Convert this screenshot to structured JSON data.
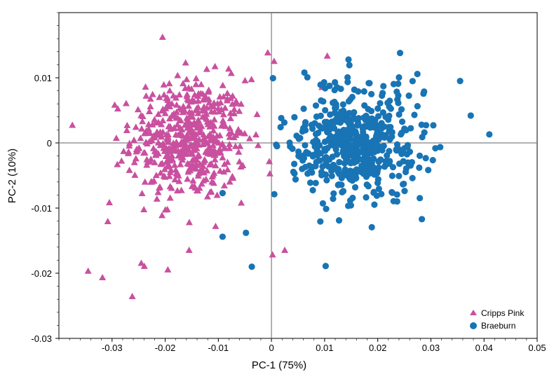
{
  "chart_data": {
    "type": "scatter",
    "xlabel": "PC-1 (75%)",
    "ylabel": "PC-2 (10%)",
    "xlim": [
      -0.04,
      0.05
    ],
    "ylim": [
      -0.03,
      0.02
    ],
    "x_ticks": [
      -0.03,
      -0.02,
      -0.01,
      0,
      0.01,
      0.02,
      0.03,
      0.04,
      0.05
    ],
    "x_tick_labels": [
      "-0.03",
      "-0.02",
      "-0.01",
      "0",
      "0.01",
      "0.02",
      "0.03",
      "0.04",
      "0.05"
    ],
    "y_ticks": [
      -0.03,
      -0.02,
      -0.01,
      0,
      0.01
    ],
    "y_tick_labels": [
      "-0.03",
      "-0.02",
      "-0.01",
      "0",
      "0.01"
    ],
    "grid": false,
    "zero_lines": true,
    "legend_position": "bottom-right",
    "series": [
      {
        "name": "Cripps Pink",
        "marker": "triangle",
        "color": "#c9509f",
        "center": [
          -0.0155,
          0.0005
        ],
        "spread": [
          0.0068,
          0.0058
        ],
        "count": 520,
        "notable_points": [
          [
            -0.0205,
            0.0162
          ],
          [
            -0.0345,
            -0.0197
          ],
          [
            -0.0318,
            -0.0207
          ],
          [
            -0.0262,
            -0.0236
          ],
          [
            -0.0305,
            -0.0092
          ],
          [
            -0.0308,
            -0.0121
          ],
          [
            -0.0007,
            0.0138
          ],
          [
            0.0005,
            0.0125
          ],
          [
            0.0105,
            0.0133
          ],
          [
            0.0095,
            0.0085
          ],
          [
            0.0025,
            -0.0165
          ],
          [
            0.0002,
            -0.0172
          ],
          [
            -0.0155,
            -0.0165
          ],
          [
            -0.0195,
            -0.0195
          ],
          [
            -0.0245,
            -0.0185
          ]
        ]
      },
      {
        "name": "Braeburn",
        "marker": "circle",
        "color": "#1874b4",
        "center": [
          0.0155,
          -0.0005
        ],
        "spread": [
          0.0072,
          0.0055
        ],
        "count": 520,
        "notable_points": [
          [
            0.041,
            0.0013
          ],
          [
            0.0375,
            0.0042
          ],
          [
            0.0355,
            0.0095
          ],
          [
            0.0242,
            0.0138
          ],
          [
            0.0145,
            0.0128
          ],
          [
            0.0102,
            -0.0189
          ],
          [
            -0.0037,
            -0.019
          ],
          [
            -0.0092,
            -0.0144
          ],
          [
            -0.0048,
            -0.0138
          ],
          [
            -0.0092,
            -0.0077
          ],
          [
            0.0062,
            0.0108
          ],
          [
            0.0283,
            -0.0117
          ]
        ]
      }
    ]
  }
}
